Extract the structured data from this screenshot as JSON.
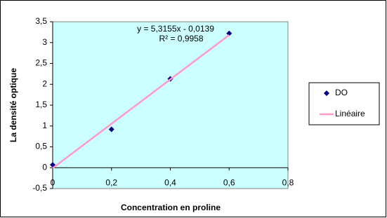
{
  "chart_data": {
    "type": "scatter",
    "x_label": "Concentration en proline",
    "y_label": "La densité optique",
    "annotations": [
      "y = 5,3155x - 0,0139",
      "R² = 0,9958"
    ],
    "series": [
      {
        "name": "DO",
        "style": "marker",
        "color": "#000080",
        "x": [
          0,
          0.2,
          0.4,
          0.6
        ],
        "values": [
          0.07,
          0.92,
          2.13,
          3.22
        ]
      },
      {
        "name": "Linéaire",
        "style": "line",
        "color": "#ff99cc",
        "x": [
          0,
          0.6
        ],
        "values": [
          -0.01,
          3.18
        ]
      }
    ],
    "xlim": [
      0,
      0.8
    ],
    "xticks": [
      0,
      {
        "value": 0.2,
        "label": "0,2"
      },
      {
        "value": 0.4,
        "label": "0,4"
      },
      {
        "value": 0.6,
        "label": "0,6"
      },
      {
        "value": 0.8,
        "label": "0,8"
      }
    ],
    "ylim": [
      -0.5,
      3.5
    ],
    "yticks": [
      {
        "value": -0.5,
        "label": "-0,5"
      },
      0,
      {
        "value": 0.5,
        "label": "0,5"
      },
      1,
      {
        "value": 1.5,
        "label": "1,5"
      },
      2,
      {
        "value": 2.5,
        "label": "2,5"
      },
      3,
      {
        "value": 3.5,
        "label": "3,5"
      }
    ],
    "plot_background": "#ccffff",
    "legend": "right"
  }
}
